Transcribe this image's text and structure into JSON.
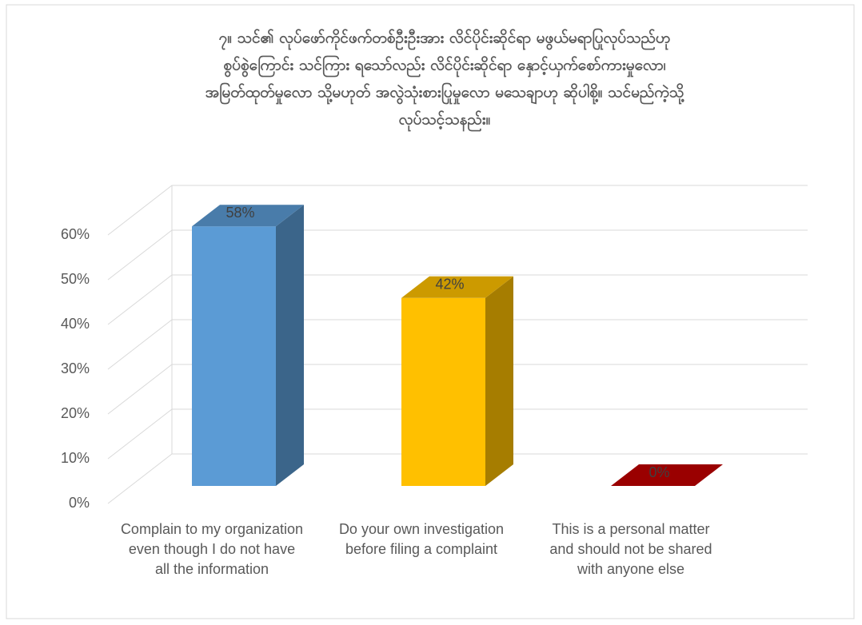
{
  "chart_data": {
    "type": "bar3d",
    "title": [
      "၇။ သင်၏ လုပ်ဖော်ကိုင်ဖက်တစ်ဦးဦးအား လိင်ပိုင်းဆိုင်ရာ မဖွယ်မရာပြုလုပ်သည်ဟု",
      "စွပ်စွဲကြောင်း သင်ကြား ရသော်လည်း လိင်ပိုင်းဆိုင်ရာ နှောင့်ယှက်စော်ကားမှုလော၊",
      "အမြတ်ထုတ်မှုလော သို့မဟုတ် အလွဲသုံးစားပြုမှုလော မသေချာဟု ဆိုပါစို့။ သင်မည်ကဲ့သို့",
      "လုပ်သင့်သနည်း။"
    ],
    "categories": [
      "Complain to my organization even though I do not have all the information",
      "Do your own investigation before filing a complaint",
      "This is a personal matter and should not be shared with anyone else"
    ],
    "values": [
      58,
      42,
      0
    ],
    "value_labels": [
      "58%",
      "42%",
      "0%"
    ],
    "colors": [
      "#5b9bd5",
      "#ffc000",
      "#c00000"
    ],
    "ylim": [
      0,
      60
    ],
    "yticks": [
      {
        "value": 0,
        "label": "0%"
      },
      {
        "value": 10,
        "label": "10%"
      },
      {
        "value": 20,
        "label": "20%"
      },
      {
        "value": 30,
        "label": "30%"
      },
      {
        "value": 40,
        "label": "40%"
      },
      {
        "value": 50,
        "label": "50%"
      },
      {
        "value": 60,
        "label": "60%"
      }
    ],
    "grid": true
  }
}
